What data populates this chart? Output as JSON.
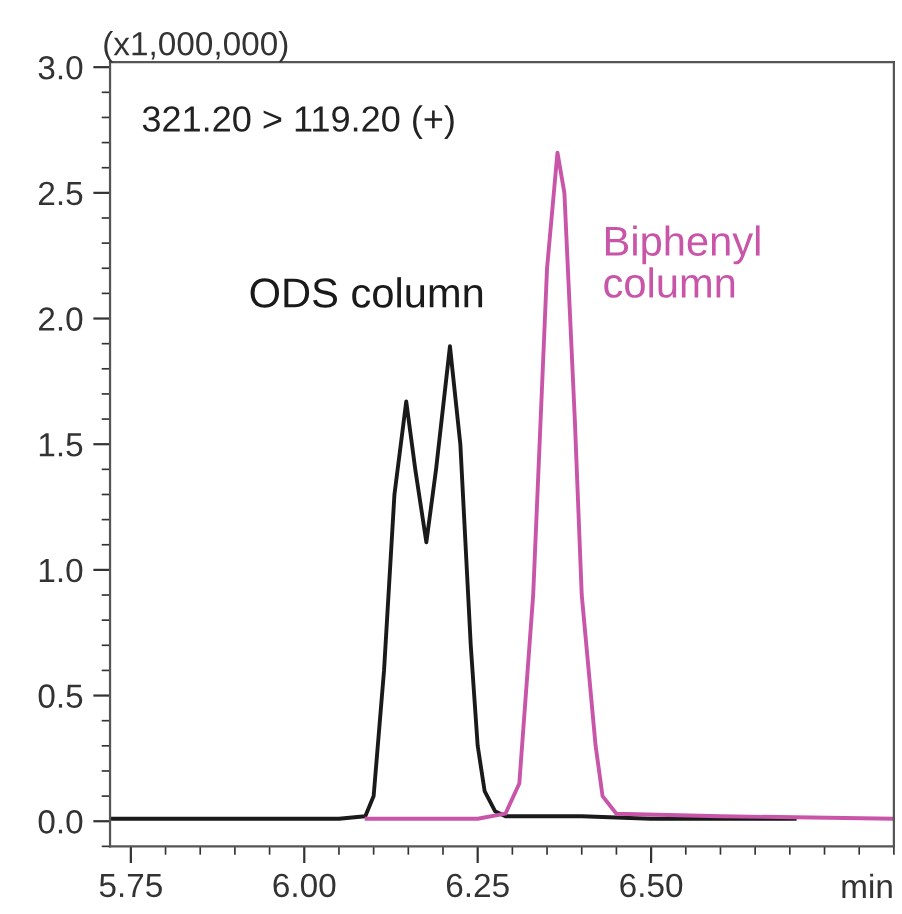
{
  "chart_data": {
    "type": "line",
    "ylabel": "(x1,000,000)",
    "xlabel": "min",
    "annotations": [
      "321.20 > 119.20 (+)"
    ],
    "xlim": [
      5.72,
      6.85
    ],
    "ylim": [
      -0.1,
      3.02
    ],
    "xticks": [
      {
        "value": 5.75,
        "label": "5.75"
      },
      {
        "value": 6.0,
        "label": "6.00"
      },
      {
        "value": 6.25,
        "label": "6.25"
      },
      {
        "value": 6.5,
        "label": "6.50"
      }
    ],
    "yticks": [
      {
        "value": 0,
        "label": "0.0"
      },
      {
        "value": 0.5,
        "label": "0.5"
      },
      {
        "value": 1,
        "label": "1.0"
      },
      {
        "value": 1.5,
        "label": "1.5"
      },
      {
        "value": 2,
        "label": "2.0"
      },
      {
        "value": 2.5,
        "label": "2.5"
      },
      {
        "value": 3,
        "label": "3.0"
      }
    ],
    "grid": false,
    "legend": false,
    "marker": "none",
    "line_style": "solid",
    "series": [
      {
        "name": "ODS column",
        "color": "#1a1a1a",
        "x": [
          5.72,
          5.9,
          6.05,
          6.088,
          6.1,
          6.115,
          6.13,
          6.147,
          6.16,
          6.176,
          6.19,
          6.21,
          6.225,
          6.24,
          6.25,
          6.26,
          6.275,
          6.29,
          6.4,
          6.5,
          6.707
        ],
        "values": [
          0.01,
          0.01,
          0.01,
          0.02,
          0.1,
          0.6,
          1.3,
          1.67,
          1.4,
          1.11,
          1.4,
          1.89,
          1.5,
          0.7,
          0.3,
          0.12,
          0.04,
          0.02,
          0.02,
          0.01,
          0.01
        ]
      },
      {
        "name": "Biphenyl\ncolumn",
        "color": "#c855a8",
        "x": [
          6.09,
          6.25,
          6.29,
          6.31,
          6.33,
          6.35,
          6.365,
          6.375,
          6.39,
          6.4,
          6.42,
          6.43,
          6.45,
          6.6,
          6.85
        ],
        "values": [
          0.01,
          0.01,
          0.03,
          0.15,
          0.9,
          2.2,
          2.66,
          2.5,
          1.6,
          0.9,
          0.3,
          0.1,
          0.03,
          0.02,
          0.01
        ]
      }
    ]
  }
}
